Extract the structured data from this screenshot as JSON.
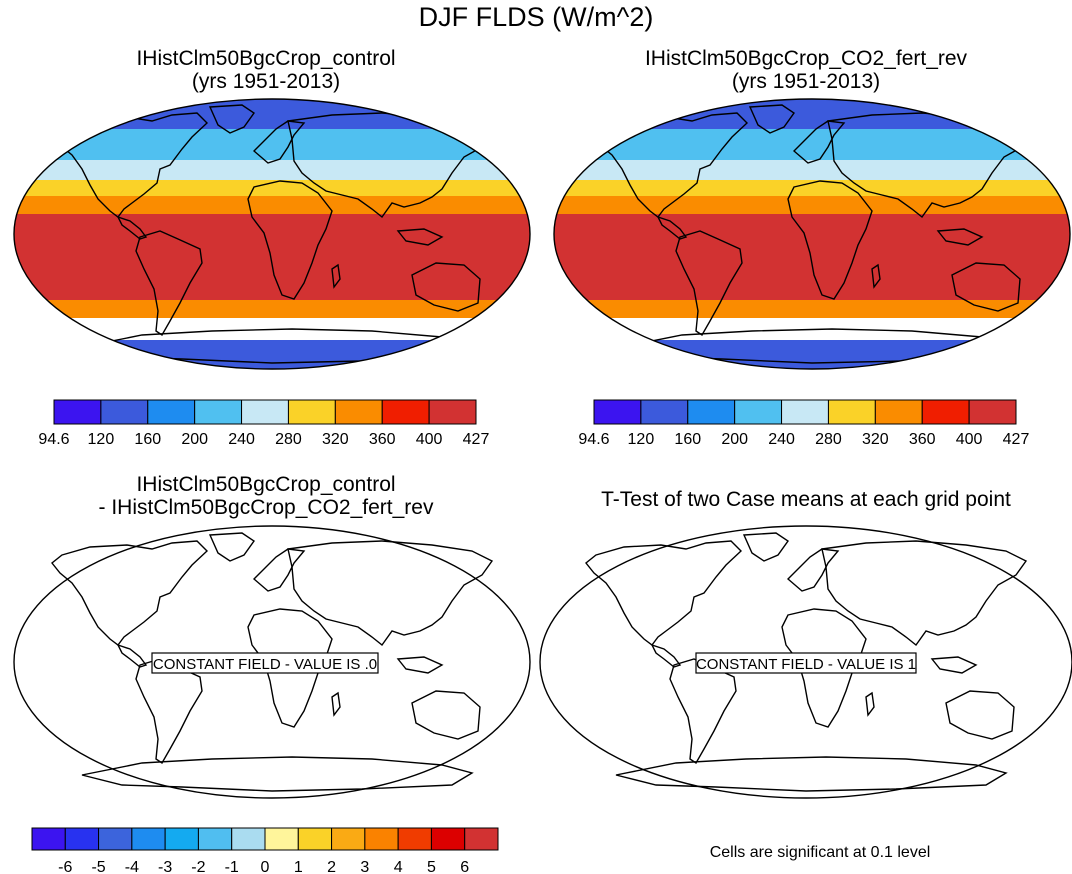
{
  "title": "DJF FLDS (W/m^2)",
  "panels": [
    {
      "id": "p1",
      "title_line1": "IHistClm50BgcCrop_control",
      "title_line2": "(yrs 1951-2013)"
    },
    {
      "id": "p2",
      "title_line1": "IHistClm50BgcCrop_CO2_fert_rev",
      "title_line2": "(yrs 1951-2013)"
    },
    {
      "id": "p3",
      "title_line1": "IHistClm50BgcCrop_control",
      "title_line2": "- IHistClm50BgcCrop_CO2_fert_rev",
      "field_label": "CONSTANT FIELD - VALUE IS .0"
    },
    {
      "id": "p4",
      "title_line1": "T-Test of two Case means at each grid point",
      "field_label": "CONSTANT FIELD - VALUE IS 1"
    }
  ],
  "colorbar_abs": {
    "labels": [
      "94.6",
      "120",
      "160",
      "200",
      "240",
      "280",
      "320",
      "360",
      "400",
      "427"
    ],
    "colors": [
      "#3c14f0",
      "#3c5adc",
      "#1e8cf0",
      "#50c0f0",
      "#c8e8f5",
      "#fad228",
      "#fa8c00",
      "#f01e00",
      "#d23232"
    ]
  },
  "colorbar_diff": {
    "labels": [
      "-6",
      "-5",
      "-4",
      "-3",
      "-2",
      "-1",
      "0",
      "1",
      "2",
      "3",
      "4",
      "5",
      "6"
    ],
    "colors": [
      "#3c14f0",
      "#2832f0",
      "#3c64dc",
      "#1e8cf0",
      "#14aaf0",
      "#50bef0",
      "#aadcf0",
      "#fff59b",
      "#fad228",
      "#faaa14",
      "#fa8200",
      "#f03c00",
      "#dc0000",
      "#d23232"
    ]
  },
  "significance_note": "Cells are significant at 0.1 level"
}
